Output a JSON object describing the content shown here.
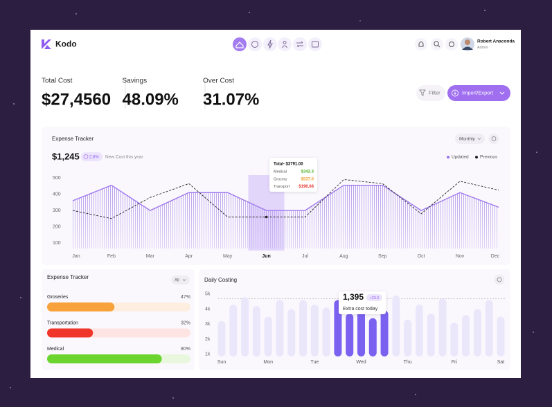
{
  "brand": "Kodo",
  "user": {
    "name": "Robert Anaconda",
    "role": "Admin"
  },
  "stats": [
    {
      "label": "Total Cost",
      "value": "$27,4560"
    },
    {
      "label": "Savings",
      "value": "48.09%"
    },
    {
      "label": "Over Cost",
      "value": "31.07%"
    }
  ],
  "actions": {
    "filter": "Filter",
    "import_export": "Import/Export"
  },
  "expense_chart": {
    "type": "line",
    "title": "Expense Tracker",
    "period": "Monthly",
    "amount": "$1,245",
    "change": "2.8%",
    "note": "New Cost this year",
    "categories": [
      "Jan",
      "Feb",
      "Mar",
      "Apr",
      "May",
      "Jun",
      "Jul",
      "Aug",
      "Sep",
      "Oct",
      "Nov",
      "Dec"
    ],
    "ylim": [
      75,
      530
    ],
    "yticks": [
      100,
      200,
      300,
      400,
      500
    ],
    "highlight_index": 5,
    "series": [
      {
        "name": "Updated",
        "color": "#9a72ee",
        "values": [
          360,
          455,
          300,
          410,
          410,
          300,
          300,
          455,
          455,
          300,
          410,
          320
        ]
      },
      {
        "name": "Previous",
        "color": "#222222",
        "values": [
          300,
          250,
          380,
          465,
          260,
          260,
          260,
          490,
          465,
          280,
          480,
          425
        ]
      }
    ],
    "tooltip": {
      "title": "Total- $3791.00",
      "rows": [
        {
          "label": "Medical",
          "value": "$342.3",
          "color": "#4caf22"
        },
        {
          "label": "Grocery",
          "value": "$537.0",
          "color": "#f0a030"
        },
        {
          "label": "Transport",
          "value": "$196.08",
          "color": "#e5332a"
        }
      ]
    }
  },
  "category_tracker": {
    "type": "progress",
    "title": "Expense Tracker",
    "filter": "All",
    "items": [
      {
        "label": "Groseries",
        "value": 47,
        "value_label": "47%",
        "color": "#f7a23a",
        "track": "#fdeee0"
      },
      {
        "label": "Transportation",
        "value": 32,
        "value_label": "32%",
        "color": "#f0362a",
        "track": "#fde4e2"
      },
      {
        "label": "Medical",
        "value": 80,
        "value_label": "80%",
        "color": "#6bd42e",
        "track": "#e9f7df"
      }
    ]
  },
  "daily_costing": {
    "type": "bar",
    "title": "Daily Costing",
    "categories": [
      "Sun",
      "Mon",
      "Tue",
      "Wed",
      "Thu",
      "Fri",
      "Sat"
    ],
    "values": [
      3.2,
      4.3,
      4.8,
      4.2,
      3.5,
      4.6,
      4.0,
      4.6,
      4.3,
      4.1,
      4.6,
      3.7,
      4.8,
      3.4,
      3.9,
      4.9,
      3.3,
      4.3,
      3.7,
      4.7,
      3.1,
      3.6,
      4.0,
      4.6,
      3.5
    ],
    "color": "#ebe7fb",
    "highlight_color": "#7b61f0",
    "highlight": [
      10,
      11,
      12,
      13,
      14
    ],
    "ylim": [
      0.85,
      5.5
    ],
    "yticks": [
      {
        "value": 5,
        "label": "5k"
      },
      {
        "value": 4,
        "label": "4k"
      },
      {
        "value": 3,
        "label": "3k"
      },
      {
        "value": 2,
        "label": "2k"
      },
      {
        "value": 1,
        "label": "1k"
      }
    ],
    "reference_line": 4.7,
    "tooltip": {
      "value": "1,395",
      "change": "+23.0",
      "note": "Extra cost today"
    }
  }
}
